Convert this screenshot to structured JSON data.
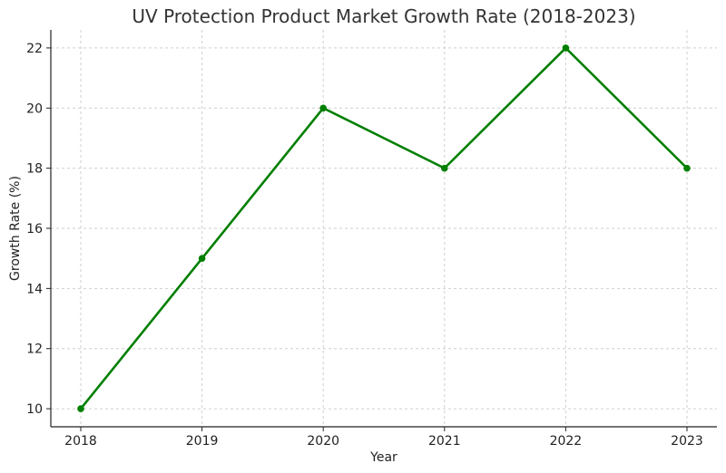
{
  "chart_data": {
    "type": "line",
    "title": "UV Protection Product Market Growth Rate (2018-2023)",
    "xlabel": "Year",
    "ylabel": "Growth Rate (%)",
    "x": [
      "2018",
      "2019",
      "2020",
      "2021",
      "2022",
      "2023"
    ],
    "series": [
      {
        "values": [
          10,
          15,
          20,
          18,
          22,
          18
        ],
        "color": "#007f00"
      }
    ],
    "ylim": [
      9.4,
      22.6
    ],
    "yticks": [
      "10",
      "12",
      "14",
      "16",
      "18",
      "20",
      "22"
    ],
    "grid": true,
    "legend": "none"
  }
}
